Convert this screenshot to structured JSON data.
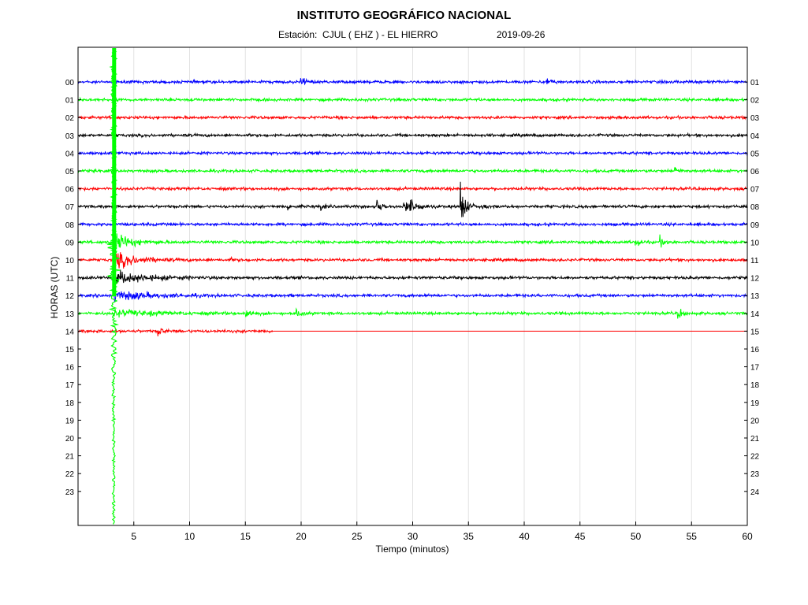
{
  "header": {
    "title": "INSTITUTO GEOGRÁFICO NACIONAL",
    "station_label": "Estación:",
    "station_value": "CJUL ( EHZ ) - EL HIERRO",
    "date": "2019-09-26"
  },
  "chart_data": {
    "type": "line",
    "title": "INSTITUTO GEOGRÁFICO NACIONAL",
    "xlabel": "Tiempo (minutos)",
    "ylabel": "HORAS (UTC)",
    "xlim": [
      0,
      60
    ],
    "x_ticks": [
      5,
      10,
      15,
      20,
      25,
      30,
      35,
      40,
      45,
      50,
      55,
      60
    ],
    "grid": true,
    "y_ticks_left": [
      "00",
      "01",
      "02",
      "03",
      "04",
      "05",
      "06",
      "07",
      "08",
      "09",
      "10",
      "11",
      "12",
      "13",
      "14",
      "15",
      "16",
      "17",
      "18",
      "19",
      "20",
      "21",
      "22",
      "23"
    ],
    "y_ticks_right": [
      "01",
      "02",
      "03",
      "04",
      "05",
      "06",
      "07",
      "08",
      "09",
      "10",
      "11",
      "12",
      "13",
      "14",
      "15",
      "16",
      "17",
      "18",
      "19",
      "20",
      "21",
      "22",
      "23",
      "24"
    ],
    "trace_colors": [
      "#0000ff",
      "#00ff00",
      "#ff0000",
      "#000000"
    ],
    "traces_recorded_hours": 15,
    "last_trace_end_minute": 17.5,
    "events": [
      {
        "hour": 0,
        "minute": 20.0,
        "amplitude": 1.0
      },
      {
        "hour": 0,
        "minute": 42.0,
        "amplitude": 0.8
      },
      {
        "hour": 5,
        "minute": 53.5,
        "amplitude": 0.7
      },
      {
        "hour": 7,
        "minute": 18.7,
        "amplitude": 0.6
      },
      {
        "hour": 7,
        "minute": 21.7,
        "amplitude": 0.7
      },
      {
        "hour": 7,
        "minute": 26.8,
        "amplitude": 1.6
      },
      {
        "hour": 7,
        "minute": 29.2,
        "amplitude": 1.3
      },
      {
        "hour": 7,
        "minute": 29.8,
        "amplitude": 1.3
      },
      {
        "hour": 7,
        "minute": 30.5,
        "amplitude": 0.9
      },
      {
        "hour": 7,
        "minute": 34.3,
        "amplitude": 5.5
      },
      {
        "hour": 7,
        "minute": 36.0,
        "amplitude": 0.4
      },
      {
        "hour": 9,
        "minute": 50.0,
        "amplitude": 1.0
      },
      {
        "hour": 9,
        "minute": 52.2,
        "amplitude": 0.9
      },
      {
        "hour": 10,
        "minute": 13.5,
        "amplitude": 0.3
      },
      {
        "hour": 13,
        "minute": 15.0,
        "amplitude": 1.3
      },
      {
        "hour": 13,
        "minute": 19.6,
        "amplitude": 0.9
      },
      {
        "hour": 13,
        "minute": 53.8,
        "amplitude": 1.1
      },
      {
        "hour": 14,
        "minute": 7.2,
        "amplitude": 1.0
      }
    ],
    "main_event": {
      "hour": 9,
      "minute": 3.2,
      "amplitude": 27,
      "span_hours": [
        0,
        24
      ]
    }
  }
}
